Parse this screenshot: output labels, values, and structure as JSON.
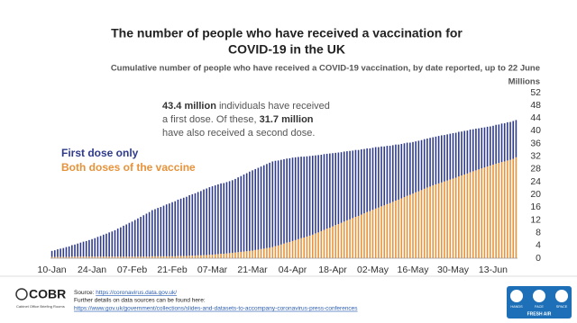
{
  "chart_data": {
    "type": "stacked-bar",
    "title": [
      "The number of people who have received a vaccination for",
      "COVID-19 in the UK"
    ],
    "subtitle": "Cumulative number of people who have received a COVID-19 vaccination, by date reported, up to 22 June",
    "y_axis_label": "Millions",
    "annotation": [
      [
        {
          "text": "43.4 million",
          "bold": true
        },
        {
          "text": " individuals have received",
          "bold": false
        }
      ],
      [
        {
          "text": "a first dose. Of these, ",
          "bold": false
        },
        {
          "text": "31.7 million",
          "bold": true
        }
      ],
      [
        {
          "text": "have also received a second dose.",
          "bold": false
        }
      ]
    ],
    "categories": [
      "10-Jan",
      null,
      null,
      null,
      null,
      null,
      null,
      null,
      null,
      null,
      null,
      null,
      null,
      null,
      "24-Jan",
      null,
      null,
      null,
      null,
      null,
      null,
      null,
      null,
      null,
      null,
      null,
      null,
      null,
      "07-Feb",
      null,
      null,
      null,
      null,
      null,
      null,
      null,
      null,
      null,
      null,
      null,
      null,
      null,
      "21-Feb",
      null,
      null,
      null,
      null,
      null,
      null,
      null,
      null,
      null,
      null,
      null,
      null,
      null,
      "07-Mar",
      null,
      null,
      null,
      null,
      null,
      null,
      null,
      null,
      null,
      null,
      null,
      null,
      null,
      "21-Mar",
      null,
      null,
      null,
      null,
      null,
      null,
      null,
      null,
      null,
      null,
      null,
      null,
      null,
      "04-Apr",
      null,
      null,
      null,
      null,
      null,
      null,
      null,
      null,
      null,
      null,
      null,
      null,
      null,
      "18-Apr",
      null,
      null,
      null,
      null,
      null,
      null,
      null,
      null,
      null,
      null,
      null,
      null,
      null,
      "02-May",
      null,
      null,
      null,
      null,
      null,
      null,
      null,
      null,
      null,
      null,
      null,
      null,
      null,
      "16-May",
      null,
      null,
      null,
      null,
      null,
      null,
      null,
      null,
      null,
      null,
      null,
      null,
      null,
      "30-May",
      null,
      null,
      null,
      null,
      null,
      null,
      null,
      null,
      null,
      null,
      null,
      null,
      null,
      "13-Jun",
      null,
      null,
      null,
      null,
      null,
      null,
      null,
      null
    ],
    "series": [
      {
        "name": "Both doses of the vaccine",
        "color": "#e8923a",
        "values": [
          0.4,
          0.4,
          0.4,
          0.4,
          0.4,
          0.4,
          0.4,
          0.5,
          0.5,
          0.5,
          0.5,
          0.5,
          0.5,
          0.5,
          0.5,
          0.5,
          0.5,
          0.5,
          0.5,
          0.5,
          0.5,
          0.5,
          0.5,
          0.5,
          0.5,
          0.5,
          0.5,
          0.5,
          0.5,
          0.5,
          0.5,
          0.5,
          0.5,
          0.5,
          0.5,
          0.6,
          0.6,
          0.6,
          0.6,
          0.6,
          0.6,
          0.6,
          0.6,
          0.6,
          0.7,
          0.7,
          0.7,
          0.7,
          0.8,
          0.8,
          0.8,
          0.9,
          0.9,
          1.0,
          1.0,
          1.1,
          1.1,
          1.2,
          1.3,
          1.4,
          1.4,
          1.5,
          1.6,
          1.7,
          1.8,
          1.9,
          2.0,
          2.1,
          2.2,
          2.3,
          2.4,
          2.6,
          2.7,
          2.9,
          3.0,
          3.2,
          3.3,
          3.5,
          3.8,
          4.0,
          4.3,
          4.6,
          4.9,
          5.1,
          5.4,
          5.7,
          6.0,
          6.3,
          6.5,
          6.8,
          7.1,
          7.4,
          7.8,
          8.1,
          8.5,
          8.9,
          9.3,
          9.6,
          10.0,
          10.4,
          10.7,
          11.1,
          11.5,
          11.9,
          12.2,
          12.6,
          13.0,
          13.3,
          13.7,
          14.1,
          14.5,
          14.8,
          15.2,
          15.6,
          15.9,
          16.3,
          16.6,
          17.0,
          17.3,
          17.7,
          18.1,
          18.4,
          18.8,
          19.2,
          19.6,
          19.9,
          20.3,
          20.7,
          21.0,
          21.4,
          21.8,
          22.2,
          22.5,
          22.9,
          23.2,
          23.5,
          23.8,
          24.1,
          24.4,
          24.7,
          25.0,
          25.3,
          25.7,
          26.0,
          26.3,
          26.6,
          27.0,
          27.3,
          27.6,
          27.9,
          28.2,
          28.5,
          28.8,
          29.1,
          29.4,
          29.7,
          29.9,
          30.2,
          30.4,
          30.7,
          30.9,
          31.2,
          31.7
        ]
      },
      {
        "name": "First dose only",
        "color": "#2e3a8c",
        "values": [
          1.9,
          2.1,
          2.4,
          2.6,
          2.8,
          3.1,
          3.3,
          3.6,
          3.8,
          4.1,
          4.4,
          4.7,
          4.9,
          5.2,
          5.5,
          5.8,
          6.2,
          6.5,
          6.9,
          7.2,
          7.6,
          7.9,
          8.3,
          8.8,
          9.2,
          9.7,
          10.1,
          10.6,
          11.0,
          11.5,
          12.0,
          12.5,
          13.0,
          13.5,
          14.0,
          14.5,
          14.8,
          15.2,
          15.5,
          15.9,
          16.3,
          16.6,
          17.0,
          17.3,
          17.7,
          18.0,
          18.3,
          18.6,
          19.0,
          19.3,
          19.6,
          19.9,
          20.2,
          20.6,
          20.9,
          21.2,
          21.5,
          21.7,
          21.9,
          22.1,
          22.2,
          22.4,
          22.6,
          22.8,
          23.1,
          23.5,
          23.8,
          24.2,
          24.5,
          24.9,
          25.2,
          25.4,
          25.7,
          25.9,
          26.2,
          26.4,
          26.7,
          26.9,
          26.8,
          26.7,
          26.6,
          26.5,
          26.4,
          26.3,
          26.2,
          26.0,
          25.8,
          25.6,
          25.4,
          25.2,
          25.0,
          24.8,
          24.5,
          24.3,
          24.0,
          23.8,
          23.5,
          23.3,
          23.0,
          22.7,
          22.5,
          22.2,
          22.0,
          21.7,
          21.5,
          21.2,
          21.0,
          20.7,
          20.5,
          20.2,
          20.0,
          19.7,
          19.5,
          19.3,
          19.0,
          18.8,
          18.5,
          18.3,
          18.0,
          17.8,
          17.6,
          17.3,
          17.1,
          16.9,
          16.7,
          16.4,
          16.2,
          16.0,
          15.9,
          15.7,
          15.6,
          15.4,
          15.3,
          15.1,
          15.0,
          14.9,
          14.8,
          14.6,
          14.5,
          14.4,
          14.3,
          14.1,
          14.0,
          13.8,
          13.7,
          13.5,
          13.4,
          13.2,
          13.1,
          12.9,
          12.8,
          12.6,
          12.5,
          12.3,
          12.2,
          12.2,
          12.1,
          12.1,
          12.0,
          12.0,
          11.9,
          11.9,
          11.7
        ]
      }
    ],
    "ylim": [
      0,
      52
    ],
    "yticks": [
      0,
      4,
      8,
      12,
      16,
      20,
      24,
      28,
      32,
      36,
      40,
      44,
      48,
      52
    ],
    "y_axis_side": "right",
    "grid": false
  },
  "footer": {
    "logo": "COBR",
    "logo_caption": "Cabinet Office Briefing Rooms",
    "source_label": "Source: ",
    "source_link": "https://coronavirus.data.gov.uk/",
    "details_text": "Further details on data sources can be found here:",
    "details_link": "https://www.gov.uk/government/collections/slides-and-datasets-to-accompany-coronavirus-press-conferences",
    "icons": [
      "HANDS",
      "FACE",
      "SPACE"
    ],
    "icons_caption": "FRESH AIR"
  }
}
